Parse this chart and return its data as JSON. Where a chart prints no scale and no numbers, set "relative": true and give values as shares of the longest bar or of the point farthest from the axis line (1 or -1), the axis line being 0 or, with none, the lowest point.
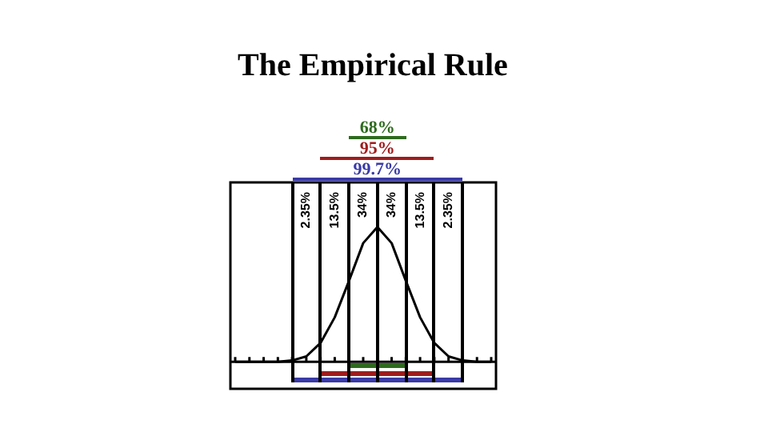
{
  "chart_data": {
    "type": "line",
    "title": "The Empirical Rule",
    "relative": true,
    "categories": [
      null,
      null,
      null,
      null,
      null,
      null,
      null,
      null,
      null,
      null,
      null,
      null,
      null,
      null,
      null,
      null,
      null,
      null,
      null
    ],
    "series": [
      {
        "color": "#000000",
        "values": [
          0,
          0,
          0,
          0,
          0.01,
          0.04,
          0.14,
          0.33,
          0.6,
          0.88,
          1,
          0.88,
          0.6,
          0.33,
          0.14,
          0.04,
          0.01,
          0,
          0
        ]
      }
    ],
    "annotations": [
      "68%",
      "95%",
      "99.7%",
      "2.35%",
      "13.5%",
      "34%",
      "34%",
      "13.5%",
      "2.35%"
    ],
    "marker": "none",
    "line_style": "solid",
    "legend": false
  }
}
